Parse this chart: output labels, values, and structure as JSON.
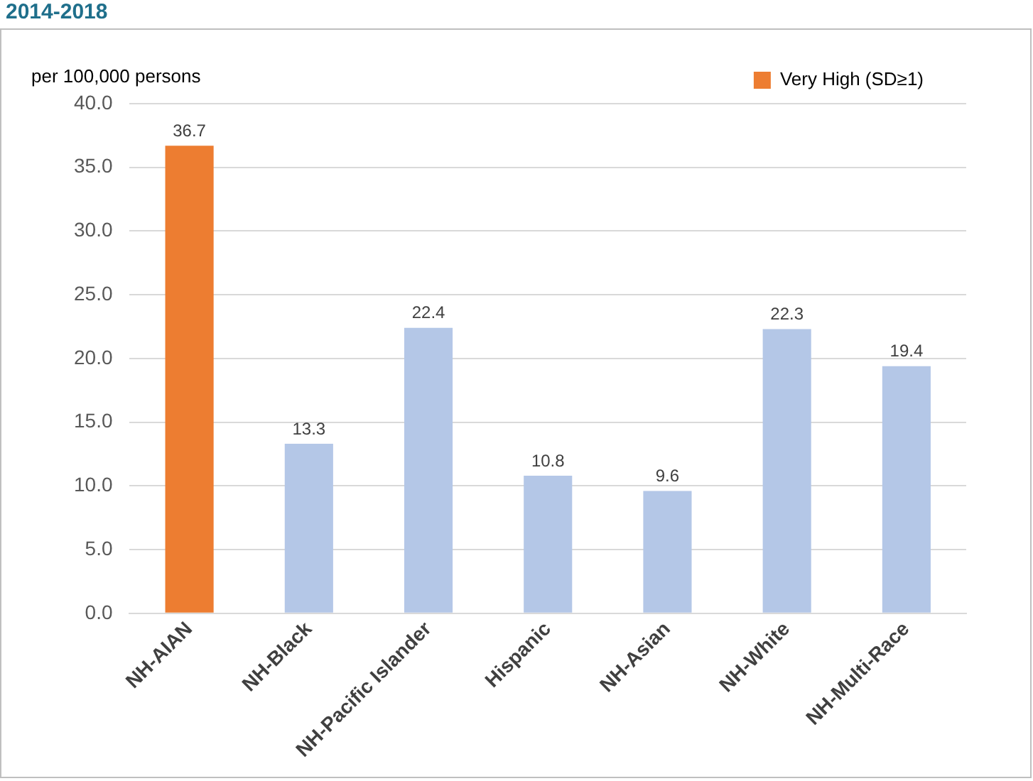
{
  "chart_data": {
    "type": "bar",
    "title": "2014-2018",
    "ylabel": "per 100,000 persons",
    "categories": [
      "NH-AIAN",
      "NH-Black",
      "NH-Pacific Islander",
      "Hispanic",
      "NH-Asian",
      "NH-White",
      "NH-Multi-Race"
    ],
    "series": [
      {
        "name": "Very High (SD≥1)",
        "color": "#ed7d31",
        "values": [
          36.7,
          null,
          null,
          null,
          null,
          null,
          null
        ]
      },
      {
        "color": "#b4c7e7",
        "values": [
          null,
          13.3,
          22.4,
          10.8,
          9.6,
          22.3,
          19.4
        ]
      }
    ],
    "ylim": [
      0,
      40
    ],
    "yticks": [
      {
        "value": 0,
        "label": "0.0"
      },
      {
        "value": 5,
        "label": "5.0"
      },
      {
        "value": 10,
        "label": "10.0"
      },
      {
        "value": 15,
        "label": "15.0"
      },
      {
        "value": 20,
        "label": "20.0"
      },
      {
        "value": 25,
        "label": "25.0"
      },
      {
        "value": 30,
        "label": "30.0"
      },
      {
        "value": 35,
        "label": "35.0"
      },
      {
        "value": 40,
        "label": "40.0"
      }
    ],
    "grid": "y",
    "legend": "top right",
    "data_labels": true
  }
}
